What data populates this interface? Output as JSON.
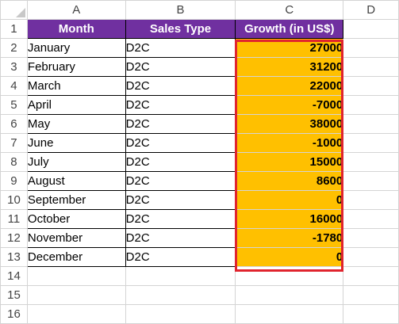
{
  "columns": [
    "A",
    "B",
    "C",
    "D"
  ],
  "headers": [
    "Month",
    "Sales Type",
    "Growth (in US$)"
  ],
  "rows": [
    {
      "month": "January",
      "type": "D2C",
      "growth": "27000"
    },
    {
      "month": "February",
      "type": "D2C",
      "growth": "31200"
    },
    {
      "month": "March",
      "type": "D2C",
      "growth": "22000"
    },
    {
      "month": "April",
      "type": "D2C",
      "growth": "-7000"
    },
    {
      "month": "May",
      "type": "D2C",
      "growth": "38000"
    },
    {
      "month": "June",
      "type": "D2C",
      "growth": "-1000"
    },
    {
      "month": "July",
      "type": "D2C",
      "growth": "15000"
    },
    {
      "month": "August",
      "type": "D2C",
      "growth": "8600"
    },
    {
      "month": "September",
      "type": "D2C",
      "growth": "0"
    },
    {
      "month": "October",
      "type": "D2C",
      "growth": "16000"
    },
    {
      "month": "November",
      "type": "D2C",
      "growth": "-1780"
    },
    {
      "month": "December",
      "type": "D2C",
      "growth": "0"
    }
  ],
  "row_numbers": [
    "1",
    "2",
    "3",
    "4",
    "5",
    "6",
    "7",
    "8",
    "9",
    "10",
    "11",
    "12",
    "13",
    "14",
    "15",
    "16"
  ],
  "colors": {
    "header_fill": "#7030a0",
    "value_fill": "#ffc000",
    "highlight_border": "#e0242e"
  }
}
